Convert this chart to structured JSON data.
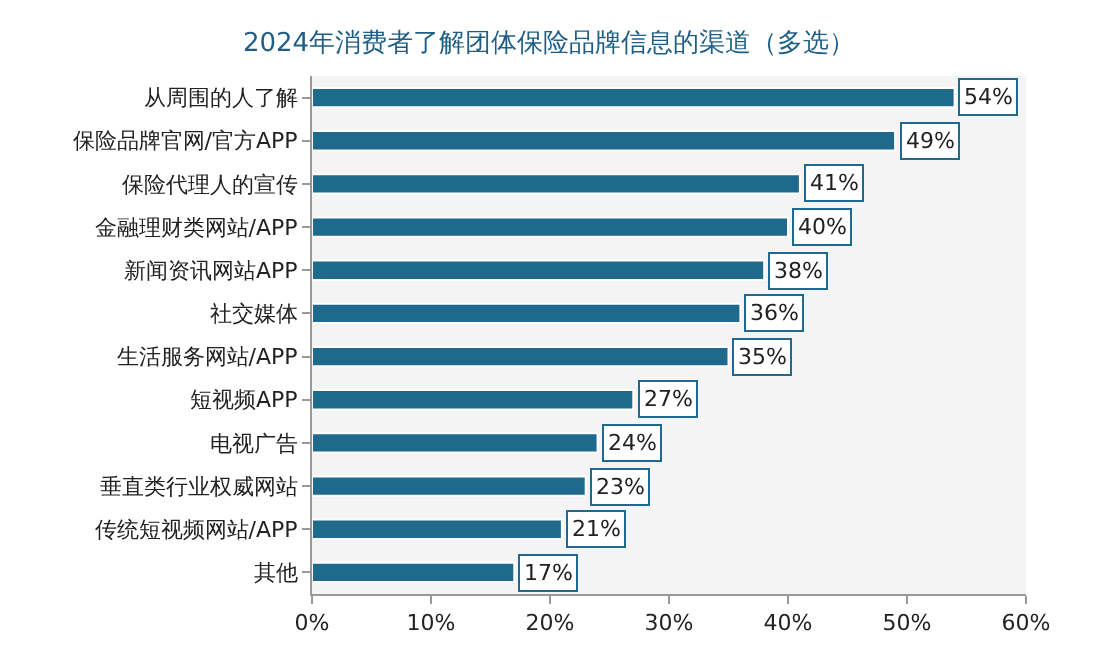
{
  "chart_data": {
    "type": "bar",
    "orientation": "horizontal",
    "title": "2024年消费者了解团体保险品牌信息的渠道（多选）",
    "categories": [
      "从周围的人了解",
      "保险品牌官网/官方APP",
      "保险代理人的宣传",
      "金融理财类网站/APP",
      "新闻资讯网站APP",
      "社交媒体",
      "生活服务网站/APP",
      "短视频APP",
      "电视广告",
      "垂直类行业权威网站",
      "传统短视频网站/APP",
      "其他"
    ],
    "values": [
      54,
      49,
      41,
      40,
      38,
      36,
      35,
      27,
      24,
      23,
      21,
      17
    ],
    "value_labels": [
      "54%",
      "49%",
      "41%",
      "40%",
      "38%",
      "36%",
      "35%",
      "27%",
      "24%",
      "23%",
      "21%",
      "17%"
    ],
    "color": "#1f6a8c",
    "xlim": [
      0,
      60
    ],
    "xticks": [
      {
        "value": 0,
        "label": "0%"
      },
      {
        "value": 10,
        "label": "10%"
      },
      {
        "value": 20,
        "label": "20%"
      },
      {
        "value": 30,
        "label": "30%"
      },
      {
        "value": 40,
        "label": "40%"
      },
      {
        "value": 50,
        "label": "50%"
      },
      {
        "value": 60,
        "label": "60%"
      }
    ],
    "grid": false,
    "legend": false
  }
}
